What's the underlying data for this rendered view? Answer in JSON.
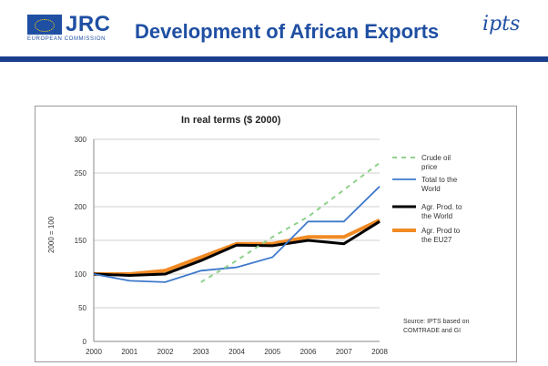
{
  "header": {
    "logo_text": "JRC",
    "logo_subtext": "EUROPEAN COMMISSION",
    "title": "Development of African Exports",
    "institute_logo": "ipts",
    "bar_text": "",
    "slide_number": ""
  },
  "colors": {
    "brand_blue": "#1f4fa3",
    "bar_blue": "#1a3f8c",
    "crude_oil": "#8fd18a",
    "total_world": "#3e79cc",
    "agr_world": "#000000",
    "agr_eu": "#f08a24"
  },
  "chart_data": {
    "type": "line",
    "title": "In real terms ($ 2000)",
    "ylabel": "2000 = 100",
    "xlabel": "",
    "x": [
      "2000",
      "2001",
      "2002",
      "2003",
      "2004",
      "2005",
      "2006",
      "2007",
      "2008"
    ],
    "ylim": [
      0,
      300
    ],
    "yticks": [
      0,
      50,
      100,
      150,
      200,
      250,
      300
    ],
    "grid": "horizontal",
    "legend_position": "right",
    "series": [
      {
        "name": "Crude oil price",
        "values": [
          null,
          null,
          null,
          88,
          120,
          155,
          185,
          225,
          265
        ],
        "style": "dashed"
      },
      {
        "name": "Total to the World",
        "values": [
          100,
          90,
          88,
          105,
          110,
          125,
          178,
          178,
          230
        ],
        "style": "solid"
      },
      {
        "name": "Agr. Prod. to the World",
        "values": [
          100,
          98,
          100,
          120,
          143,
          142,
          150,
          145,
          178
        ],
        "style": "solid"
      },
      {
        "name": "Agr. Prod to the EU27",
        "values": [
          100,
          100,
          105,
          125,
          145,
          145,
          155,
          155,
          180
        ],
        "style": "solid"
      }
    ],
    "source_note": "Source: IPTS based on COMTRADE and GI"
  }
}
